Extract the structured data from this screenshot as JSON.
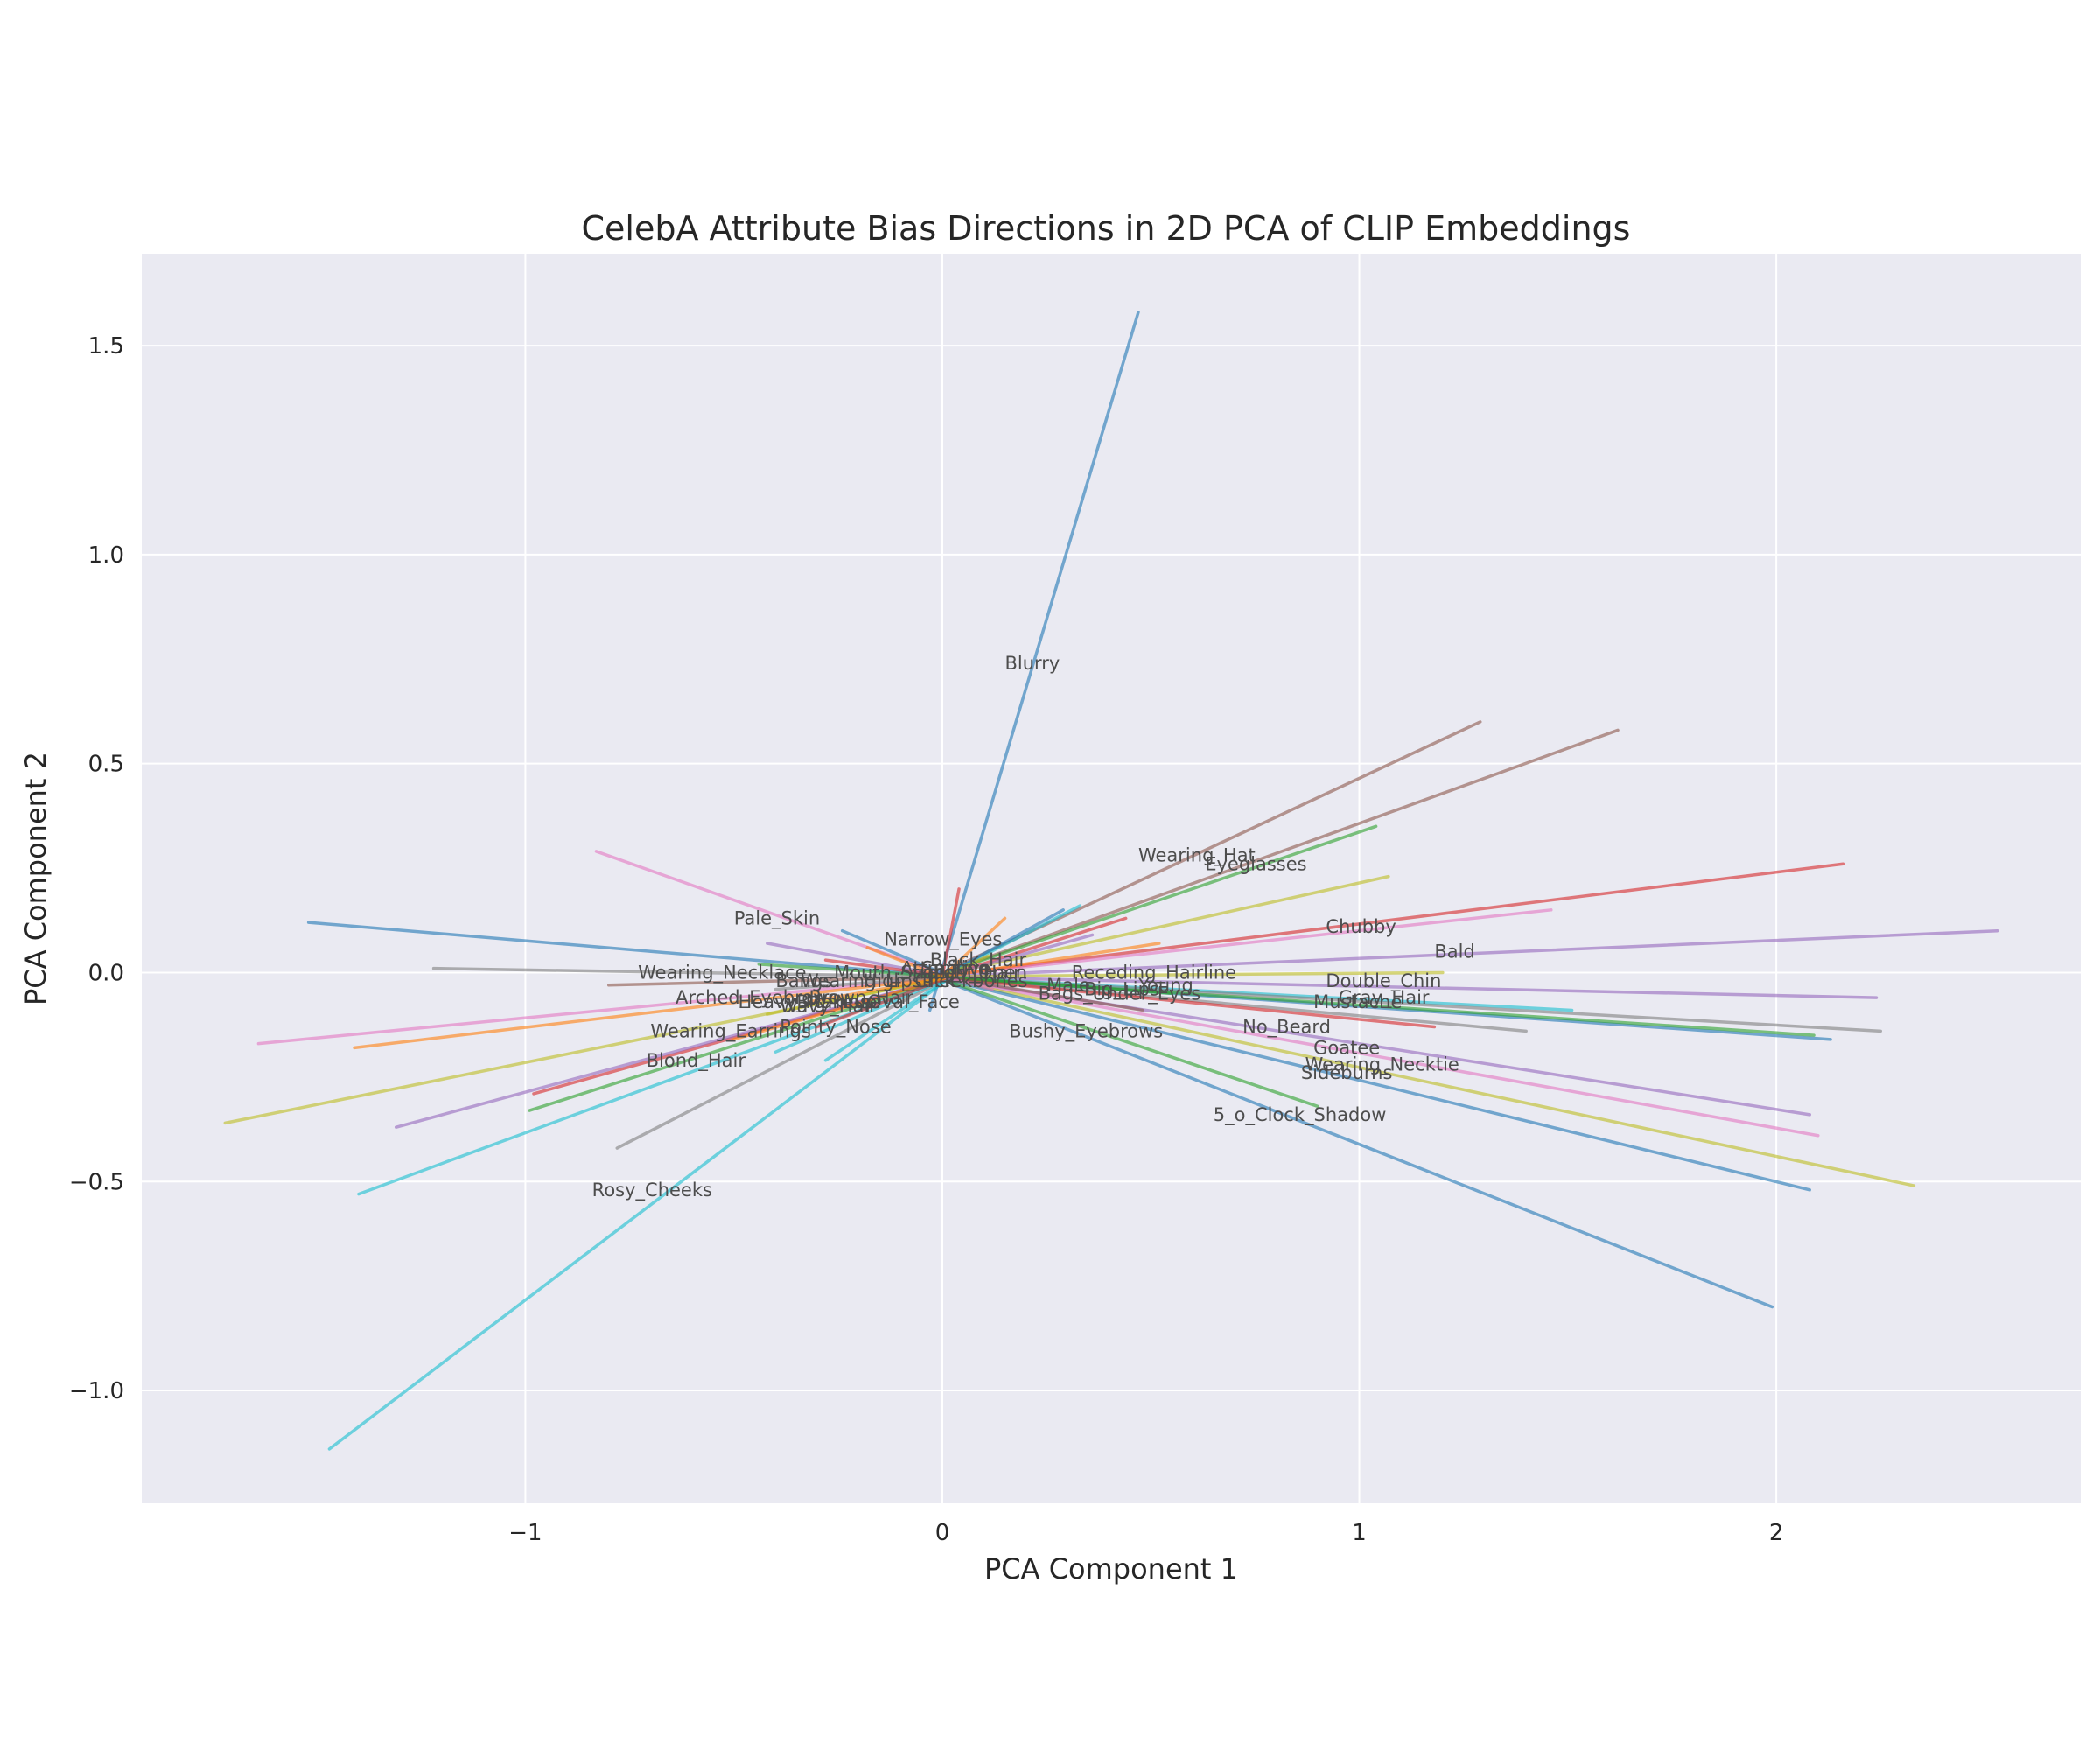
{
  "chart_data": {
    "type": "line",
    "title": "CelebA Attribute Bias Directions in 2D PCA of CLIP Embeddings",
    "xlabel": "PCA   Component 1",
    "ylabel": "PCA   Component 2",
    "xlim": [
      -1.92,
      2.73
    ],
    "ylim": [
      -1.27,
      1.72
    ],
    "xticks": [
      -1,
      0,
      1,
      2
    ],
    "xtick_labels": [
      "−1",
      "0",
      "1",
      "2"
    ],
    "yticks": [
      -1.0,
      -0.5,
      0.0,
      0.5,
      1.0,
      1.5
    ],
    "ytick_labels": [
      "−1.0",
      "−0.5",
      "0.0",
      "0.5",
      "1.0",
      "1.5"
    ],
    "grid": true,
    "background": "#eaeaf2",
    "grid_color": "#ffffff",
    "line_opacity": 0.6,
    "series": [
      {
        "x0": -0.03,
        "y0": -0.09,
        "x1": 0.47,
        "y1": 1.58,
        "color": "#1f77b4"
      },
      {
        "x0": -0.02,
        "y0": -0.01,
        "x1": 1.29,
        "y1": 0.6,
        "color": "#8c564b"
      },
      {
        "x0": -0.02,
        "y0": -0.01,
        "x1": 1.62,
        "y1": 0.58,
        "color": "#8c564b"
      },
      {
        "x0": -0.02,
        "y0": -0.01,
        "x1": 1.04,
        "y1": 0.35,
        "color": "#2ca02c"
      },
      {
        "x0": -0.02,
        "y0": -0.01,
        "x1": 1.07,
        "y1": 0.23,
        "color": "#bcbd22"
      },
      {
        "x0": -0.02,
        "y0": -0.01,
        "x1": 2.16,
        "y1": 0.26,
        "color": "#d62728"
      },
      {
        "x0": -0.02,
        "y0": -0.01,
        "x1": 1.46,
        "y1": 0.15,
        "color": "#e377c2"
      },
      {
        "x0": -0.02,
        "y0": -0.01,
        "x1": 2.53,
        "y1": 0.1,
        "color": "#9467bd"
      },
      {
        "x0": -0.02,
        "y0": -0.01,
        "x1": 1.2,
        "y1": 0.0,
        "color": "#bcbd22"
      },
      {
        "x0": -0.02,
        "y0": -0.01,
        "x1": 2.24,
        "y1": -0.06,
        "color": "#9467bd"
      },
      {
        "x0": -0.02,
        "y0": -0.01,
        "x1": 1.51,
        "y1": -0.09,
        "color": "#17becf"
      },
      {
        "x0": -0.02,
        "y0": -0.01,
        "x1": 2.25,
        "y1": -0.14,
        "color": "#7f7f7f"
      },
      {
        "x0": -0.02,
        "y0": -0.01,
        "x1": 1.4,
        "y1": -0.14,
        "color": "#7f7f7f"
      },
      {
        "x0": -0.02,
        "y0": -0.01,
        "x1": 2.13,
        "y1": -0.16,
        "color": "#1f77b4"
      },
      {
        "x0": -0.02,
        "y0": -0.01,
        "x1": 2.09,
        "y1": -0.15,
        "color": "#2ca02c"
      },
      {
        "x0": -0.02,
        "y0": -0.01,
        "x1": 1.18,
        "y1": -0.13,
        "color": "#d62728"
      },
      {
        "x0": -0.02,
        "y0": -0.01,
        "x1": 2.08,
        "y1": -0.34,
        "color": "#9467bd"
      },
      {
        "x0": -0.02,
        "y0": -0.01,
        "x1": 2.1,
        "y1": -0.39,
        "color": "#e377c2"
      },
      {
        "x0": -0.02,
        "y0": -0.01,
        "x1": 2.33,
        "y1": -0.51,
        "color": "#bcbd22"
      },
      {
        "x0": -0.02,
        "y0": -0.01,
        "x1": 2.08,
        "y1": -0.52,
        "color": "#1f77b4"
      },
      {
        "x0": -0.02,
        "y0": -0.01,
        "x1": 1.99,
        "y1": -0.8,
        "color": "#1f77b4"
      },
      {
        "x0": -0.02,
        "y0": -0.01,
        "x1": 0.9,
        "y1": -0.32,
        "color": "#2ca02c"
      },
      {
        "x0": 0.02,
        "y0": -0.01,
        "x1": -1.52,
        "y1": 0.12,
        "color": "#1f77b4"
      },
      {
        "x0": 0.02,
        "y0": -0.01,
        "x1": -1.22,
        "y1": 0.01,
        "color": "#7f7f7f"
      },
      {
        "x0": 0.02,
        "y0": -0.01,
        "x1": -0.8,
        "y1": -0.03,
        "color": "#8c564b"
      },
      {
        "x0": 0.02,
        "y0": -0.01,
        "x1": -1.64,
        "y1": -0.17,
        "color": "#e377c2"
      },
      {
        "x0": 0.02,
        "y0": -0.01,
        "x1": -1.41,
        "y1": -0.18,
        "color": "#ff7f0e"
      },
      {
        "x0": 0.02,
        "y0": -0.01,
        "x1": -1.72,
        "y1": -0.36,
        "color": "#bcbd22"
      },
      {
        "x0": 0.02,
        "y0": -0.01,
        "x1": -0.98,
        "y1": -0.29,
        "color": "#d62728"
      },
      {
        "x0": 0.02,
        "y0": -0.01,
        "x1": -1.31,
        "y1": -0.37,
        "color": "#9467bd"
      },
      {
        "x0": 0.02,
        "y0": -0.01,
        "x1": -0.99,
        "y1": -0.33,
        "color": "#2ca02c"
      },
      {
        "x0": 0.02,
        "y0": -0.01,
        "x1": -1.4,
        "y1": -0.53,
        "color": "#17becf"
      },
      {
        "x0": 0.02,
        "y0": -0.01,
        "x1": -0.78,
        "y1": -0.42,
        "color": "#7f7f7f"
      },
      {
        "x0": 0.02,
        "y0": -0.01,
        "x1": -1.47,
        "y1": -1.14,
        "color": "#17becf"
      },
      {
        "x0": 0.02,
        "y0": -0.01,
        "x1": -0.83,
        "y1": 0.29,
        "color": "#e377c2"
      },
      {
        "x0": 0.02,
        "y0": -0.01,
        "x1": -0.42,
        "y1": 0.07,
        "color": "#9467bd"
      },
      {
        "x0": 0.02,
        "y0": -0.01,
        "x1": -0.24,
        "y1": 0.1,
        "color": "#1f77b4"
      },
      {
        "x0": 0.02,
        "y0": -0.01,
        "x1": -0.4,
        "y1": -0.19,
        "color": "#17becf"
      },
      {
        "x0": 0.02,
        "y0": -0.01,
        "x1": -0.28,
        "y1": -0.21,
        "color": "#17becf"
      },
      {
        "x0": 0.02,
        "y0": -0.01,
        "x1": -0.5,
        "y1": -0.16,
        "color": "#ff7f0e"
      },
      {
        "x0": 0.02,
        "y0": -0.01,
        "x1": -0.3,
        "y1": -0.13,
        "color": "#d62728"
      },
      {
        "x0": 0.02,
        "y0": -0.01,
        "x1": -0.42,
        "y1": -0.1,
        "color": "#bcbd22"
      },
      {
        "x0": 0.02,
        "y0": -0.01,
        "x1": -0.28,
        "y1": 0.03,
        "color": "#d62728"
      },
      {
        "x0": 0.02,
        "y0": -0.01,
        "x1": -0.4,
        "y1": -0.04,
        "color": "#7f7f7f"
      },
      {
        "x0": 0.02,
        "y0": -0.01,
        "x1": -0.32,
        "y1": -0.07,
        "color": "#ff7f0e"
      },
      {
        "x0": 0.02,
        "y0": -0.01,
        "x1": -0.44,
        "y1": 0.02,
        "color": "#2ca02c"
      },
      {
        "x0": 0.0,
        "y0": -0.01,
        "x1": 0.04,
        "y1": 0.2,
        "color": "#d62728"
      },
      {
        "x0": 0.0,
        "y0": -0.01,
        "x1": 0.15,
        "y1": 0.13,
        "color": "#ff7f0e"
      },
      {
        "x0": 0.0,
        "y0": -0.01,
        "x1": 0.33,
        "y1": 0.16,
        "color": "#17becf"
      },
      {
        "x0": 0.0,
        "y0": -0.01,
        "x1": 0.29,
        "y1": 0.15,
        "color": "#1f77b4"
      },
      {
        "x0": 0.0,
        "y0": -0.01,
        "x1": 0.44,
        "y1": 0.13,
        "color": "#d62728"
      },
      {
        "x0": 0.0,
        "y0": -0.01,
        "x1": 0.36,
        "y1": 0.09,
        "color": "#9467bd"
      },
      {
        "x0": 0.0,
        "y0": -0.01,
        "x1": 0.52,
        "y1": 0.07,
        "color": "#ff7f0e"
      },
      {
        "x0": 0.0,
        "y0": -0.01,
        "x1": 0.55,
        "y1": -0.05,
        "color": "#2ca02c"
      },
      {
        "x0": 0.0,
        "y0": -0.01,
        "x1": 0.48,
        "y1": -0.09,
        "color": "#8c564b"
      },
      {
        "x0": 0.0,
        "y0": -0.01,
        "x1": 0.12,
        "y1": -0.04,
        "color": "#e377c2"
      },
      {
        "x0": 0.0,
        "y0": -0.01,
        "x1": 0.11,
        "y1": 0.04,
        "color": "#bcbd22"
      },
      {
        "x0": 0.0,
        "y0": -0.01,
        "x1": -0.18,
        "y1": 0.06,
        "color": "#ff7f0e"
      }
    ],
    "annotations": [
      {
        "text": "Blurry",
        "x": 0.15,
        "y": 0.74
      },
      {
        "text": "Wearing_Hat",
        "x": 0.47,
        "y": 0.28
      },
      {
        "text": "Eyeglasses",
        "x": 0.63,
        "y": 0.26
      },
      {
        "text": "Chubby",
        "x": 0.92,
        "y": 0.11
      },
      {
        "text": "Bald",
        "x": 1.18,
        "y": 0.05
      },
      {
        "text": "Pale_Skin",
        "x": -0.5,
        "y": 0.13
      },
      {
        "text": "Narrow_Eyes",
        "x": -0.14,
        "y": 0.08
      },
      {
        "text": "Black_Hair",
        "x": -0.03,
        "y": 0.03
      },
      {
        "text": "Wearing_Necklace",
        "x": -0.73,
        "y": 0.0
      },
      {
        "text": "Mouth_Slightly_Open",
        "x": -0.26,
        "y": 0.0
      },
      {
        "text": "Attractive",
        "x": -0.1,
        "y": 0.01
      },
      {
        "text": "Smiling",
        "x": -0.05,
        "y": 0.01
      },
      {
        "text": "Straight_Hair",
        "x": -0.1,
        "y": 0.0
      },
      {
        "text": "Receding_Hairline",
        "x": 0.31,
        "y": 0.0
      },
      {
        "text": "Bangs",
        "x": -0.4,
        "y": -0.02
      },
      {
        "text": "Wearing_Lipstick",
        "x": -0.34,
        "y": -0.02
      },
      {
        "text": "High_Cheekbones",
        "x": -0.19,
        "y": -0.02
      },
      {
        "text": "Male",
        "x": 0.25,
        "y": -0.03
      },
      {
        "text": "Big_Lips",
        "x": 0.34,
        "y": -0.04
      },
      {
        "text": "Young",
        "x": 0.47,
        "y": -0.03
      },
      {
        "text": "Bags_Under_Eyes",
        "x": 0.23,
        "y": -0.05
      },
      {
        "text": "Double_Chin",
        "x": 0.92,
        "y": -0.02
      },
      {
        "text": "Gray_Hair",
        "x": 0.95,
        "y": -0.06
      },
      {
        "text": "Mustache",
        "x": 0.89,
        "y": -0.07
      },
      {
        "text": "Arched_Eyebrows",
        "x": -0.64,
        "y": -0.06
      },
      {
        "text": "Heavy_Makeup",
        "x": -0.49,
        "y": -0.07
      },
      {
        "text": "Brown_Hair",
        "x": -0.32,
        "y": -0.06
      },
      {
        "text": "Wavy_Hair",
        "x": -0.39,
        "y": -0.08
      },
      {
        "text": "Oval_Face",
        "x": -0.18,
        "y": -0.07
      },
      {
        "text": "Big_Nose",
        "x": -0.35,
        "y": -0.07
      },
      {
        "text": "Pointy_Nose",
        "x": -0.39,
        "y": -0.13
      },
      {
        "text": "Wearing_Earrings",
        "x": -0.7,
        "y": -0.14
      },
      {
        "text": "Bushy_Eyebrows",
        "x": 0.16,
        "y": -0.14
      },
      {
        "text": "No_Beard",
        "x": 0.72,
        "y": -0.13
      },
      {
        "text": "Goatee",
        "x": 0.89,
        "y": -0.18
      },
      {
        "text": "Wearing_Necktie",
        "x": 0.87,
        "y": -0.22
      },
      {
        "text": "Sideburns",
        "x": 0.86,
        "y": -0.24
      },
      {
        "text": "5_o_Clock_Shadow",
        "x": 0.65,
        "y": -0.34
      },
      {
        "text": "Blond_Hair",
        "x": -0.71,
        "y": -0.21
      },
      {
        "text": "Rosy_Cheeks",
        "x": -0.84,
        "y": -0.52
      }
    ]
  }
}
